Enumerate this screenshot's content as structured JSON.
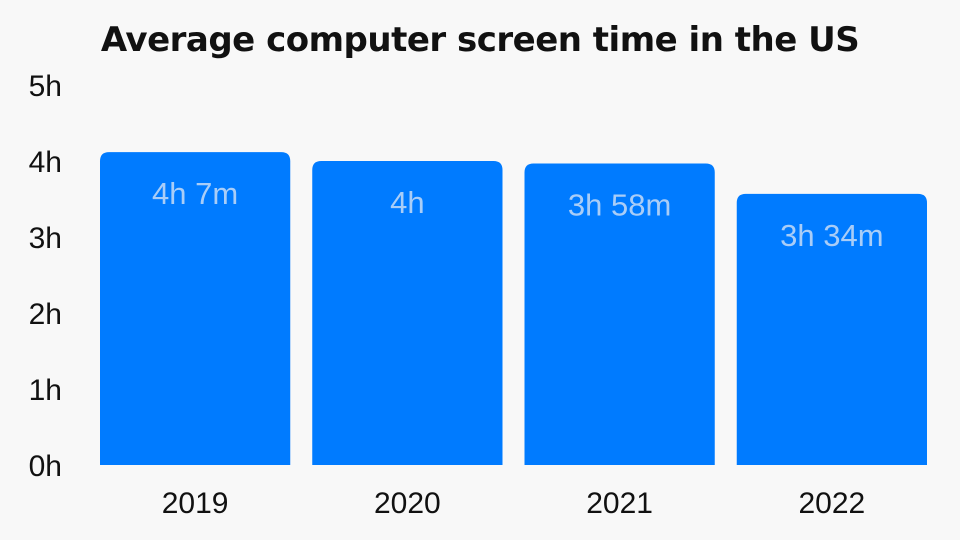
{
  "chart_data": {
    "type": "bar",
    "title": "Average computer screen time in the US",
    "xlabel": "",
    "ylabel": "",
    "categories": [
      "2019",
      "2020",
      "2021",
      "2022"
    ],
    "values": [
      4.1167,
      4.0,
      3.9667,
      3.5667
    ],
    "data_labels": [
      "4h 7m",
      "4h",
      "3h 58m",
      "3h 34m"
    ],
    "ylim": [
      0,
      5
    ],
    "yticks": [
      0,
      1,
      2,
      3,
      4,
      5
    ],
    "ytick_labels": [
      "0h",
      "1h",
      "2h",
      "3h",
      "4h",
      "5h"
    ],
    "grid": false,
    "legend": "none",
    "colors": {
      "bar": "#007bff",
      "data_label": "#a9cdf7",
      "text": "#111111",
      "background": "#f8f8f8"
    }
  }
}
